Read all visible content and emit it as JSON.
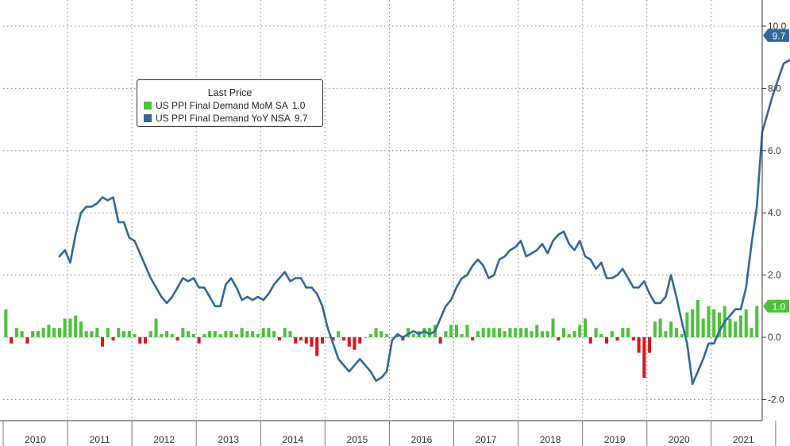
{
  "colors": {
    "mom_bar_positive": "#4cc23a",
    "mom_bar_negative": "#d9161c",
    "yoy_line": "#2f679c",
    "grid": "#8a8a8a"
  },
  "legend": {
    "title": "Last Price",
    "items": [
      {
        "label": "US PPI Final Demand MoM SA",
        "value": "1.0"
      },
      {
        "label": "US PPI Final Demand YoY NSA",
        "value": "9.7"
      }
    ]
  },
  "chart_data": {
    "type": "bar+line",
    "title": "",
    "xlabel": "",
    "ylabel": "",
    "ylim": [
      -2.3,
      10.3
    ],
    "grid": true,
    "legend_position": "top-left",
    "y_ticks": [
      "10.0",
      "8.0",
      "6.0",
      "4.0",
      "2.0",
      "0.0",
      "-2.0"
    ],
    "x_ticks": [
      "2010",
      "2011",
      "2012",
      "2013",
      "2014",
      "2015",
      "2016",
      "2017",
      "2018",
      "2019",
      "2020",
      "2021"
    ],
    "start_month": "2010-01",
    "series": [
      {
        "name": "US PPI Final Demand MoM SA",
        "kind": "bar",
        "last_value_label": "1.0",
        "values": [
          0.9,
          -0.2,
          0.3,
          0.2,
          -0.2,
          0.2,
          0.2,
          0.3,
          0.4,
          0.3,
          0.3,
          0.6,
          0.6,
          0.7,
          0.5,
          0.2,
          0.2,
          0.3,
          -0.3,
          0.3,
          -0.1,
          0.3,
          0.2,
          0.2,
          0.1,
          -0.2,
          -0.2,
          0.2,
          0.6,
          0.1,
          0.2,
          0.1,
          -0.1,
          0.3,
          0.2,
          0.1,
          -0.2,
          0.1,
          0.2,
          0.2,
          0.1,
          0.2,
          0.2,
          0.1,
          0.3,
          0.2,
          0.2,
          0.1,
          0.3,
          0.3,
          0.2,
          -0.1,
          0.3,
          0.2,
          -0.2,
          -0.1,
          -0.2,
          -0.3,
          -0.6,
          -0.2,
          0.0,
          -0.1,
          0.2,
          -0.1,
          -0.3,
          -0.4,
          -0.2,
          0.0,
          0.1,
          0.3,
          0.2,
          0.1,
          0.0,
          0.1,
          -0.1,
          0.3,
          0.1,
          0.2,
          0.3,
          0.3,
          0.4,
          -0.2,
          0.2,
          0.4,
          0.4,
          0.1,
          0.4,
          -0.1,
          0.2,
          0.3,
          0.3,
          0.3,
          0.3,
          0.2,
          0.3,
          0.3,
          0.3,
          0.3,
          0.2,
          0.4,
          0.2,
          0.2,
          0.6,
          -0.1,
          0.3,
          0.1,
          0.2,
          0.4,
          0.6,
          -0.2,
          0.3,
          0.1,
          -0.2,
          0.2,
          -0.1,
          0.3,
          0.3,
          -0.1,
          -0.5,
          -1.3,
          -0.5,
          0.5,
          0.6,
          0.2,
          0.5,
          0.3,
          0.1,
          0.8,
          0.9,
          1.2,
          0.6,
          1.0,
          0.9,
          0.8,
          1.0,
          0.6,
          0.5,
          0.7,
          0.9,
          0.3,
          1.0
        ]
      },
      {
        "name": "US PPI Final Demand YoY NSA",
        "kind": "line",
        "last_value_label": "9.7",
        "start_index": 10,
        "values": [
          2.6,
          2.8,
          2.4,
          3.3,
          4.0,
          4.2,
          4.2,
          4.3,
          4.5,
          4.4,
          4.5,
          3.7,
          3.7,
          3.2,
          3.1,
          2.7,
          2.3,
          1.9,
          1.6,
          1.3,
          1.1,
          1.3,
          1.6,
          1.9,
          1.8,
          1.9,
          1.6,
          1.6,
          1.3,
          1.0,
          1.0,
          1.7,
          1.9,
          1.6,
          1.2,
          1.3,
          1.2,
          1.3,
          1.2,
          1.4,
          1.7,
          1.9,
          2.1,
          1.8,
          1.9,
          1.9,
          1.6,
          1.6,
          1.4,
          1.0,
          0.3,
          -0.2,
          -0.7,
          -0.9,
          -1.1,
          -0.9,
          -0.7,
          -0.9,
          -1.1,
          -1.4,
          -1.3,
          -1.1,
          -0.1,
          0.1,
          0.0,
          0.1,
          0.2,
          0.1,
          0.2,
          0.1,
          0.2,
          0.6,
          1.0,
          1.2,
          1.6,
          1.9,
          2.0,
          2.3,
          2.5,
          2.3,
          1.9,
          2.0,
          2.5,
          2.6,
          2.8,
          2.9,
          3.1,
          2.6,
          2.7,
          2.8,
          3.0,
          2.7,
          3.1,
          3.3,
          3.4,
          3.0,
          2.8,
          3.1,
          2.6,
          2.5,
          2.2,
          2.4,
          1.9,
          1.9,
          2.0,
          2.2,
          1.9,
          1.6,
          1.6,
          1.8,
          1.4,
          1.1,
          1.1,
          1.3,
          2.0,
          1.3,
          0.5,
          -0.2,
          -1.5,
          -1.1,
          -0.7,
          -0.2,
          -0.2,
          0.2,
          0.5,
          0.7,
          0.9,
          0.9,
          1.6,
          3.0,
          4.2,
          6.6,
          7.2,
          7.8,
          8.3,
          8.8,
          8.9,
          9.0,
          9.9,
          9.7,
          9.7
        ]
      }
    ]
  }
}
